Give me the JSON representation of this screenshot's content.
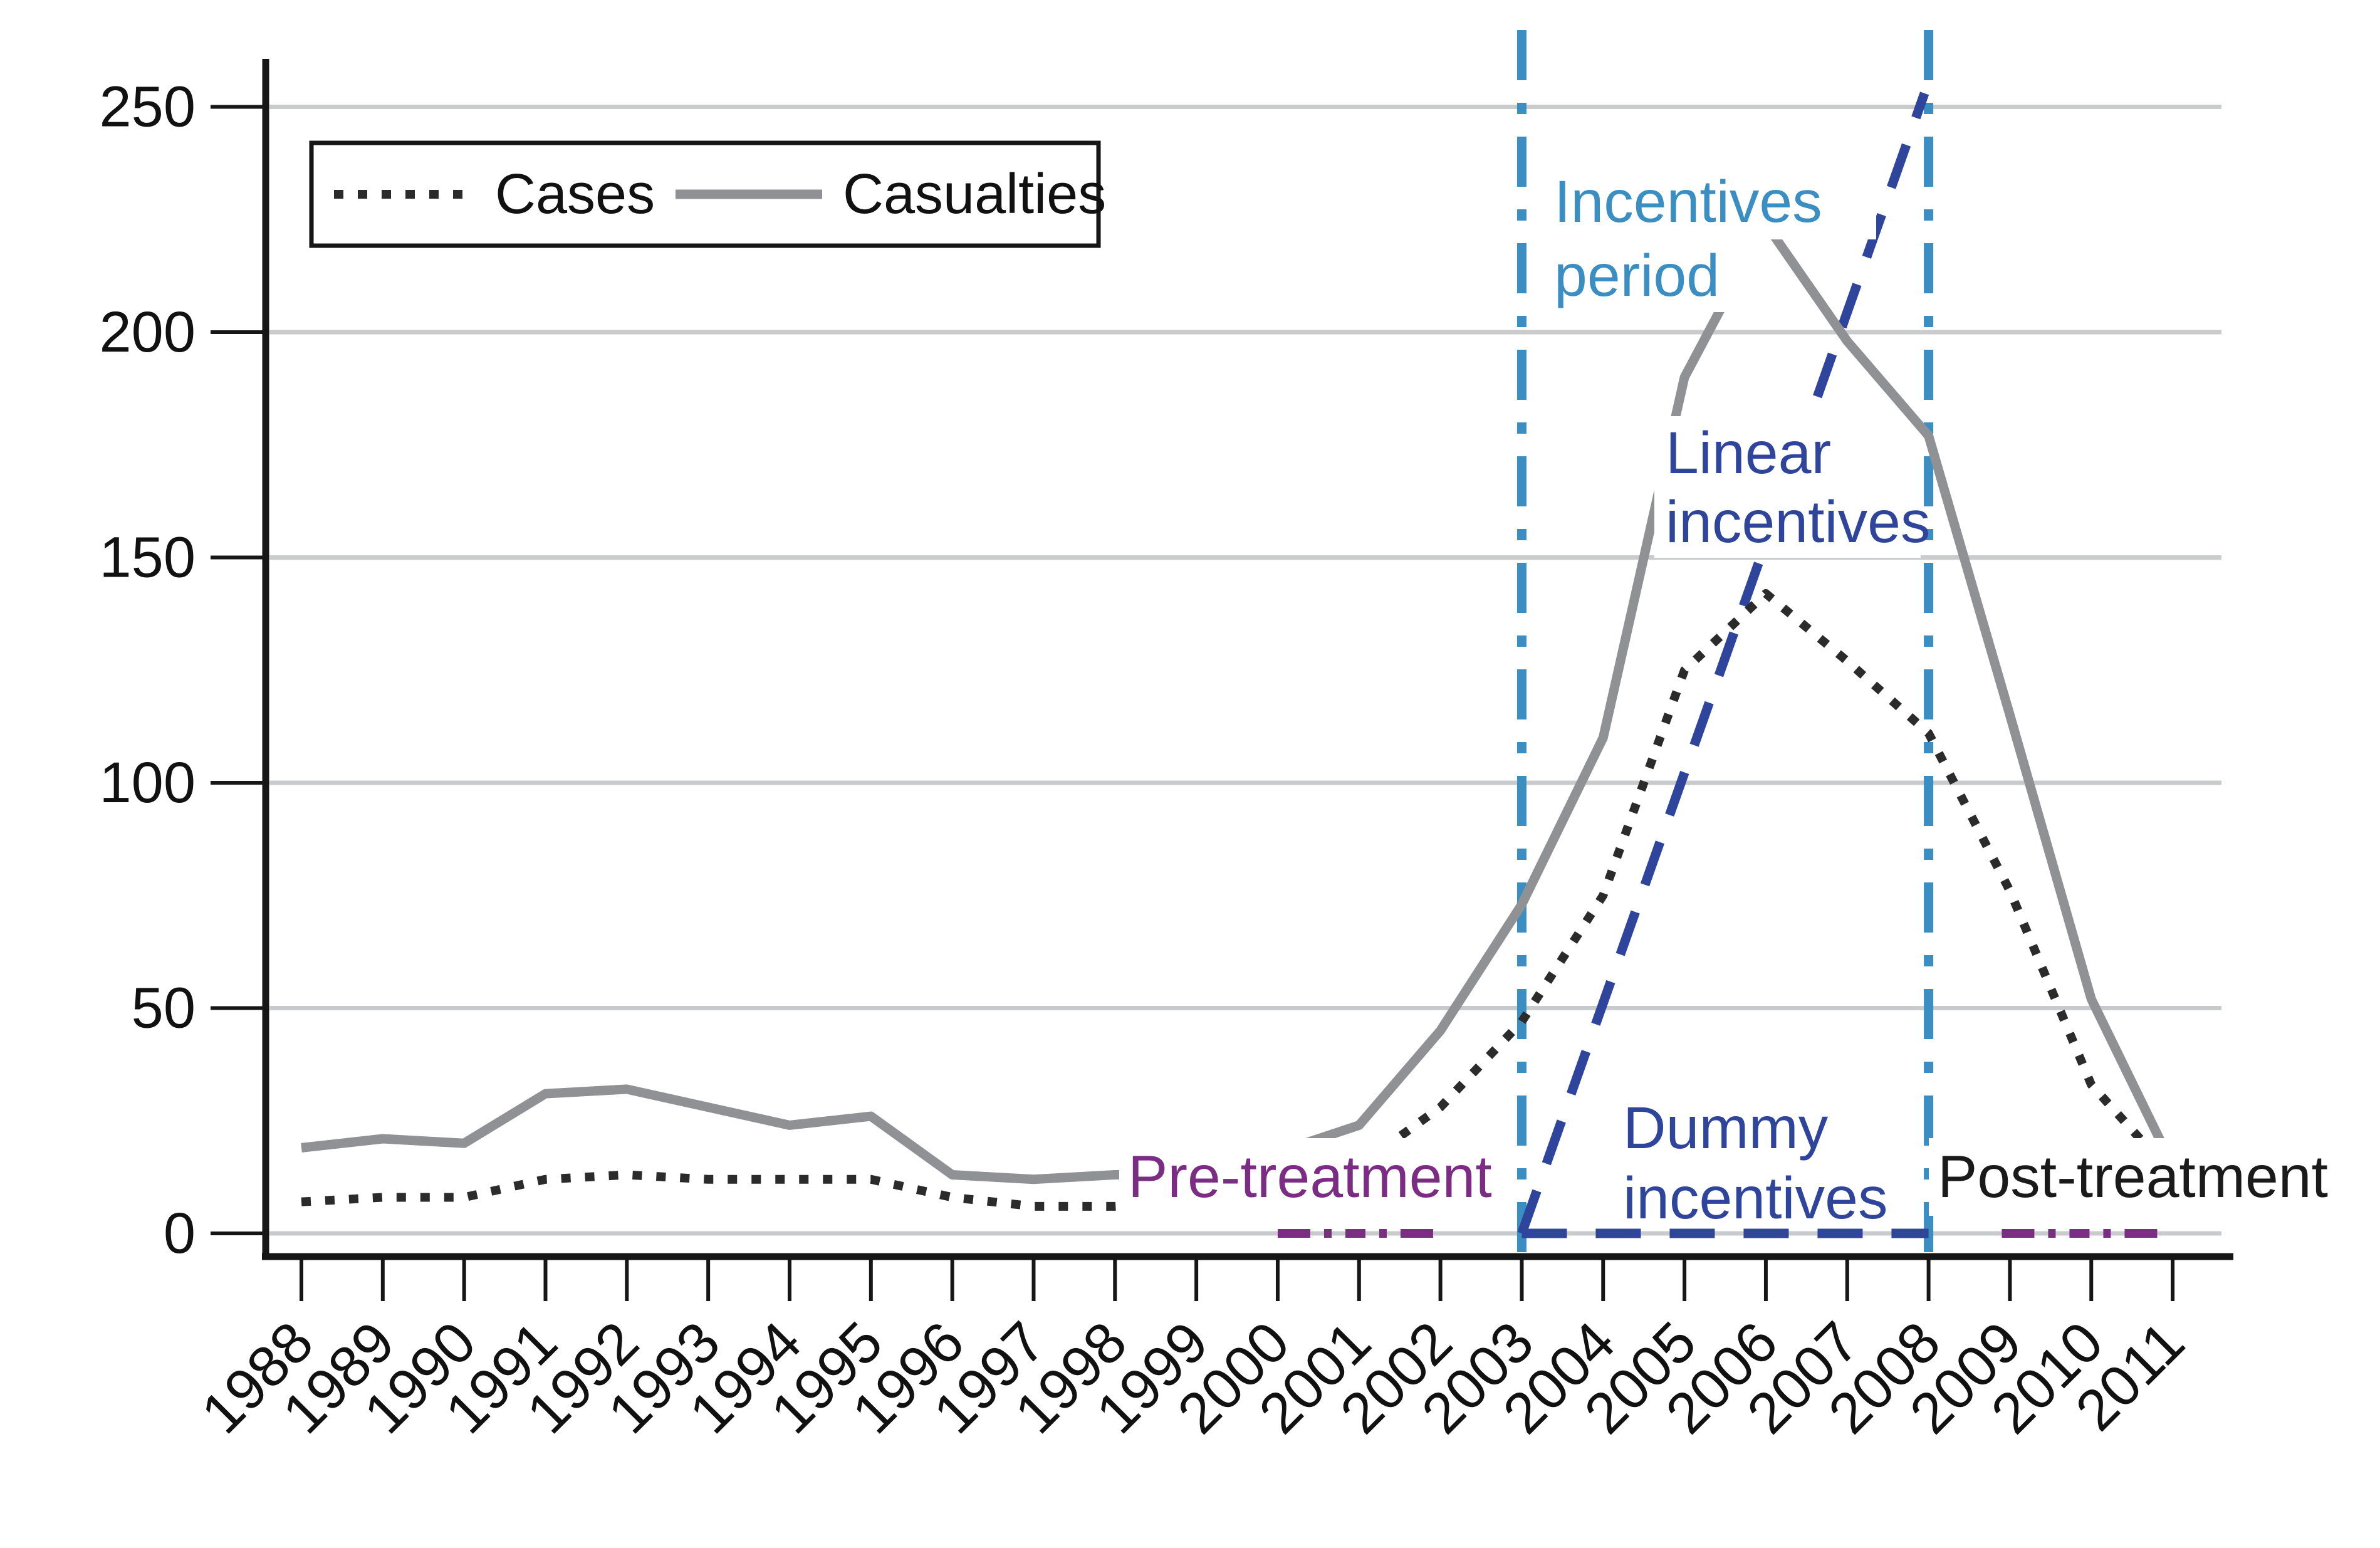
{
  "chart_data": {
    "type": "line",
    "title": "",
    "xlabel": "",
    "ylabel": "",
    "grid": "horizontal",
    "ylim": [
      0,
      250
    ],
    "yticks": [
      0,
      50,
      100,
      150,
      200,
      250
    ],
    "years": [
      1988,
      1989,
      1990,
      1991,
      1992,
      1993,
      1994,
      1995,
      1996,
      1997,
      1998,
      1999,
      2000,
      2001,
      2002,
      2003,
      2004,
      2005,
      2006,
      2007,
      2008,
      2009,
      2010,
      2011
    ],
    "series": [
      {
        "name": "Cases",
        "style": "dotted",
        "color": "#2b2b2b",
        "values": [
          7,
          8,
          8,
          12,
          13,
          12,
          12,
          12,
          8,
          6,
          6,
          7,
          9,
          15,
          28,
          47,
          75,
          125,
          142,
          127,
          111,
          76,
          33,
          13
        ]
      },
      {
        "name": "Casualties",
        "style": "solid",
        "color": "#8f9194",
        "values": [
          19,
          21,
          20,
          31,
          32,
          28,
          24,
          26,
          13,
          12,
          13,
          13,
          18,
          24,
          45,
          73,
          110,
          190,
          224,
          198,
          177,
          115,
          52,
          15
        ]
      }
    ],
    "aux_lines": [
      {
        "id": "linear-incentives-line",
        "label": "Linear incentives",
        "style": "dashed",
        "color": "#2f459c",
        "x": [
          2003,
          2007.95
        ],
        "v": [
          0,
          253
        ]
      },
      {
        "id": "dummy-incentives-line",
        "label": "Dummy incentives",
        "style": "dashed",
        "color": "#2f459c",
        "x": [
          2003,
          2008
        ],
        "v": [
          0,
          0
        ]
      }
    ],
    "period_markers": [
      {
        "id": "pre-treatment-marker",
        "label": "Pre-treatment",
        "style": "dashdot",
        "color": "#7b2d84",
        "x": [
          2000,
          2002
        ],
        "v": [
          0,
          0
        ]
      },
      {
        "id": "post-treatment-marker",
        "label": "Post-treatment",
        "style": "dashdot",
        "color": "#7b2d84",
        "x": [
          2008.9,
          2010.9
        ],
        "v": [
          0,
          0
        ]
      }
    ],
    "vlines": [
      {
        "id": "incentives-start-vline",
        "year": 2003,
        "style": "dashdot",
        "color": "#3a8ec2"
      },
      {
        "id": "incentives-end-vline",
        "year": 2008,
        "style": "dashdot",
        "color": "#3a8ec2"
      }
    ],
    "legend": {
      "position": "top-left",
      "entries": [
        "Cases",
        "Casualties"
      ]
    },
    "annotations": [
      {
        "id": "incentives-period",
        "color": "#3a8ec2",
        "lines": [
          {
            "text": "Incentives",
            "x": 2480,
            "y": 322,
            "bg": [
              2462,
              262,
              532,
              120
            ]
          },
          {
            "text": "period",
            "x": 2480,
            "y": 440,
            "bg": [
              2462,
              382,
              352,
              116
            ]
          }
        ]
      },
      {
        "id": "linear-incentives",
        "color": "#2f459c",
        "lines": [
          {
            "text": "Linear",
            "x": 2658,
            "y": 723,
            "bg": [
              2640,
              664,
              306,
              118
            ]
          },
          {
            "text": "incentives",
            "x": 2658,
            "y": 833,
            "bg": [
              2640,
              776,
              425,
              114
            ]
          }
        ]
      },
      {
        "id": "dummy-incentives",
        "color": "#2f459c",
        "lines": [
          {
            "text": "Dummy",
            "x": 2590,
            "y": 1800,
            "bg": [
              2572,
              1740,
              368,
              120
            ]
          },
          {
            "text": "incentives",
            "x": 2590,
            "y": 1912,
            "bg": [
              2572,
              1854,
              452,
              106
            ]
          }
        ]
      },
      {
        "id": "pre-treatment",
        "color": "#7b2d84",
        "lines": [
          {
            "text": "Pre-treatment",
            "x": 1800,
            "y": 1878,
            "bg": [
              1786,
              1816,
              618,
              124
            ]
          }
        ]
      },
      {
        "id": "post-treatment",
        "color": "#1a1a1a",
        "lines": [
          {
            "text": "Post-treatment",
            "x": 3092,
            "y": 1878,
            "bg": [
              3078,
              1816,
              668,
              124
            ]
          }
        ]
      }
    ],
    "colors": {
      "axis": "#161616",
      "gridline": "#c8cacb",
      "cases": "#2b2b2b",
      "casualties": "#8f9194",
      "incentive_blue": "#2f459c",
      "period_light_blue": "#3a8ec2",
      "treatment_purple": "#7b2d84"
    }
  }
}
